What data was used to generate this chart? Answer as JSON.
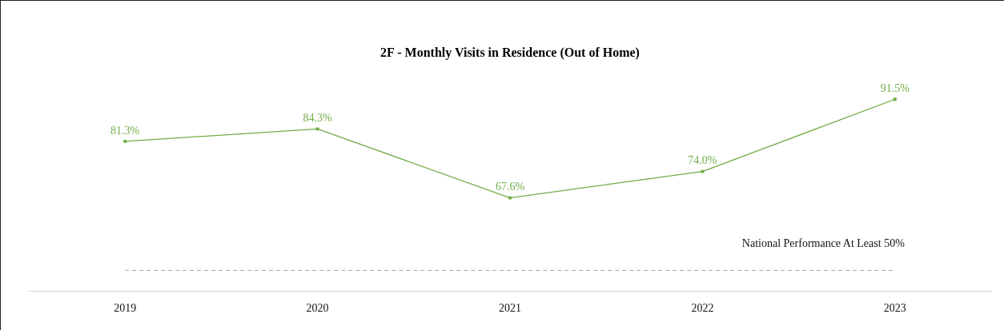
{
  "chart_data": {
    "type": "line",
    "title": "2F - Monthly Visits in Residence (Out of Home)",
    "categories": [
      "2019",
      "2020",
      "2021",
      "2022",
      "2023"
    ],
    "series": [
      {
        "color": "#70ad47",
        "values": [
          81.3,
          84.3,
          67.6,
          74.0,
          91.5
        ],
        "value_labels": [
          "81.3%",
          "84.3%",
          "67.6%",
          "74.0%",
          "91.5%"
        ]
      }
    ],
    "tick_labels": "x",
    "grid": false,
    "legend": false,
    "marker": "square",
    "line_style": "solid",
    "ref_lines": [
      {
        "axis": "y",
        "value": 50,
        "label": "National Performance At Least 50%",
        "color": "#a6a6a6",
        "line_style": "dashed"
      }
    ]
  }
}
